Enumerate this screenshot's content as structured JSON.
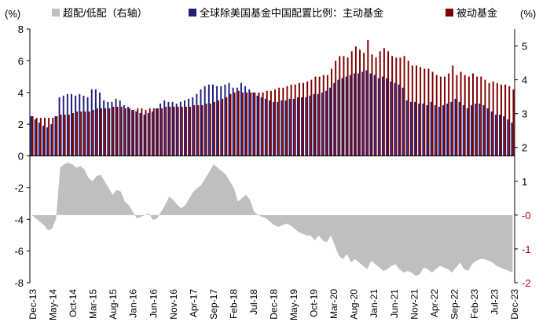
{
  "chart_data": {
    "type": "bar",
    "left_axis": {
      "unit": "(%)",
      "ylim": [
        -8,
        8
      ],
      "ticks": [
        8,
        6,
        4,
        2,
        0,
        -2,
        -4,
        -6,
        -8
      ],
      "tick_labels": [
        "8",
        "6",
        "4",
        "2",
        "0",
        "-2",
        "-4",
        "-6",
        "-8"
      ]
    },
    "right_axis": {
      "unit": "(%)",
      "ylim": [
        -2,
        5.5
      ],
      "ticks": [
        5,
        4,
        3,
        2,
        1,
        0,
        -1,
        -2
      ],
      "tick_labels": [
        "5",
        "4",
        "3",
        "2",
        "1",
        "-0",
        "-1",
        "-2"
      ],
      "colors": [
        "#000000",
        "#000000",
        "#000000",
        "#000000",
        "#000000",
        "#c00000",
        "#c00000",
        "#c00000"
      ]
    },
    "x_ticks": [
      "Dec-13",
      "May-14",
      "Oct-14",
      "Mar-15",
      "Aug-15",
      "Jan-16",
      "Jun-16",
      "Nov-16",
      "Apr-17",
      "Sep-17",
      "Feb-18",
      "Jul-18",
      "Dec-18",
      "May-19",
      "Oct-19",
      "Mar-20",
      "Aug-20",
      "Jan-21",
      "Jun-21",
      "Nov-21",
      "Apr-22",
      "Sep-22",
      "Feb-23",
      "Jul-23",
      "Dec-23"
    ],
    "series": [
      {
        "name": "超配/低配（右轴）",
        "type": "area",
        "axis": "right",
        "color": "#bfbfbf",
        "values": [
          0.0,
          -0.1,
          -0.2,
          -0.3,
          -0.45,
          -0.4,
          -0.1,
          1.4,
          1.5,
          1.55,
          1.5,
          1.4,
          1.45,
          1.35,
          1.1,
          1.0,
          1.15,
          1.2,
          1.0,
          0.8,
          0.6,
          0.75,
          0.7,
          0.4,
          0.3,
          0.1,
          -0.1,
          -0.05,
          0.0,
          0.05,
          -0.15,
          -0.1,
          0.1,
          0.3,
          0.55,
          0.45,
          0.3,
          0.2,
          0.3,
          0.5,
          0.7,
          0.8,
          0.9,
          1.1,
          1.3,
          1.5,
          1.4,
          1.3,
          1.2,
          1.0,
          0.8,
          0.4,
          0.5,
          0.6,
          0.45,
          0.1,
          0.0,
          -0.05,
          -0.1,
          -0.2,
          -0.3,
          -0.35,
          -0.3,
          -0.25,
          -0.3,
          -0.4,
          -0.5,
          -0.55,
          -0.6,
          -0.6,
          -0.75,
          -0.6,
          -0.75,
          -0.8,
          -0.6,
          -0.9,
          -1.2,
          -1.3,
          -1.15,
          -1.4,
          -1.3,
          -1.4,
          -1.5,
          -1.6,
          -1.35,
          -1.45,
          -1.55,
          -1.65,
          -1.6,
          -1.5,
          -1.45,
          -1.6,
          -1.7,
          -1.65,
          -1.7,
          -1.8,
          -1.75,
          -1.55,
          -1.6,
          -1.7,
          -1.6,
          -1.5,
          -1.55,
          -1.6,
          -1.7,
          -1.55,
          -1.4,
          -1.6,
          -1.65,
          -1.45,
          -1.35,
          -1.3,
          -1.3,
          -1.35,
          -1.4,
          -1.5,
          -1.55,
          -1.6,
          -1.65,
          -1.7
        ]
      },
      {
        "name": "全球除美国基金中国配置比例：主动基金",
        "type": "bar",
        "axis": "left",
        "color": "#1f1f7a",
        "values": [
          2.5,
          2.3,
          2.1,
          1.9,
          1.8,
          2.0,
          2.5,
          3.7,
          3.8,
          3.9,
          3.9,
          3.8,
          3.9,
          3.8,
          3.7,
          4.2,
          4.2,
          4.0,
          3.5,
          3.4,
          3.4,
          3.6,
          3.5,
          3.2,
          3.1,
          2.9,
          2.8,
          2.7,
          2.6,
          2.7,
          2.8,
          3.0,
          3.3,
          3.5,
          3.4,
          3.4,
          3.3,
          3.4,
          3.5,
          3.6,
          3.7,
          3.9,
          4.2,
          4.4,
          4.5,
          4.5,
          4.4,
          4.4,
          4.5,
          4.6,
          4.3,
          4.3,
          4.6,
          4.4,
          4.2,
          4.0,
          3.8,
          3.7,
          3.6,
          3.5,
          3.4,
          3.4,
          3.5,
          3.5,
          3.6,
          3.6,
          3.7,
          3.7,
          3.7,
          3.8,
          3.9,
          3.9,
          4.0,
          4.1,
          4.3,
          4.6,
          4.8,
          4.9,
          5.0,
          5.1,
          5.2,
          5.2,
          5.3,
          5.4,
          5.2,
          5.1,
          4.9,
          5.0,
          4.9,
          4.7,
          4.6,
          4.5,
          4.3,
          3.5,
          3.4,
          3.4,
          3.3,
          3.3,
          3.2,
          3.4,
          3.2,
          3.1,
          3.2,
          3.3,
          3.4,
          3.6,
          3.4,
          3.2,
          3.0,
          3.2,
          3.3,
          3.3,
          3.2,
          3.0,
          2.8,
          2.6,
          2.6,
          2.5,
          2.3,
          2.1
        ]
      },
      {
        "name": "被动基金",
        "type": "bar",
        "axis": "left",
        "color": "#7f0000",
        "values": [
          2.5,
          2.4,
          2.4,
          2.4,
          2.4,
          2.4,
          2.5,
          2.6,
          2.6,
          2.6,
          2.7,
          2.8,
          2.8,
          2.8,
          2.8,
          2.9,
          3.0,
          3.0,
          3.0,
          3.0,
          3.1,
          3.1,
          3.1,
          3.0,
          3.0,
          2.9,
          3.0,
          3.0,
          2.9,
          3.0,
          3.0,
          3.0,
          3.0,
          3.1,
          3.1,
          3.1,
          3.1,
          3.1,
          3.1,
          3.1,
          3.2,
          3.2,
          3.2,
          3.3,
          3.3,
          3.4,
          3.5,
          3.6,
          3.7,
          3.9,
          4.0,
          4.1,
          4.0,
          4.0,
          4.0,
          4.0,
          4.0,
          4.0,
          4.1,
          4.1,
          4.2,
          4.3,
          4.3,
          4.4,
          4.5,
          4.5,
          4.6,
          4.6,
          4.7,
          4.8,
          5.0,
          5.0,
          5.1,
          5.1,
          5.5,
          6.0,
          6.3,
          6.3,
          6.2,
          6.6,
          6.9,
          6.7,
          6.5,
          7.3,
          6.4,
          6.2,
          6.6,
          6.8,
          6.6,
          6.3,
          6.2,
          6.2,
          6.3,
          6.0,
          5.7,
          5.7,
          5.6,
          5.5,
          5.5,
          5.3,
          5.1,
          5.0,
          5.0,
          5.2,
          5.7,
          5.1,
          5.3,
          5.1,
          5.0,
          5.2,
          5.0,
          5.0,
          4.8,
          4.6,
          4.7,
          4.6,
          4.5,
          4.5,
          4.4,
          4.2
        ]
      }
    ]
  }
}
